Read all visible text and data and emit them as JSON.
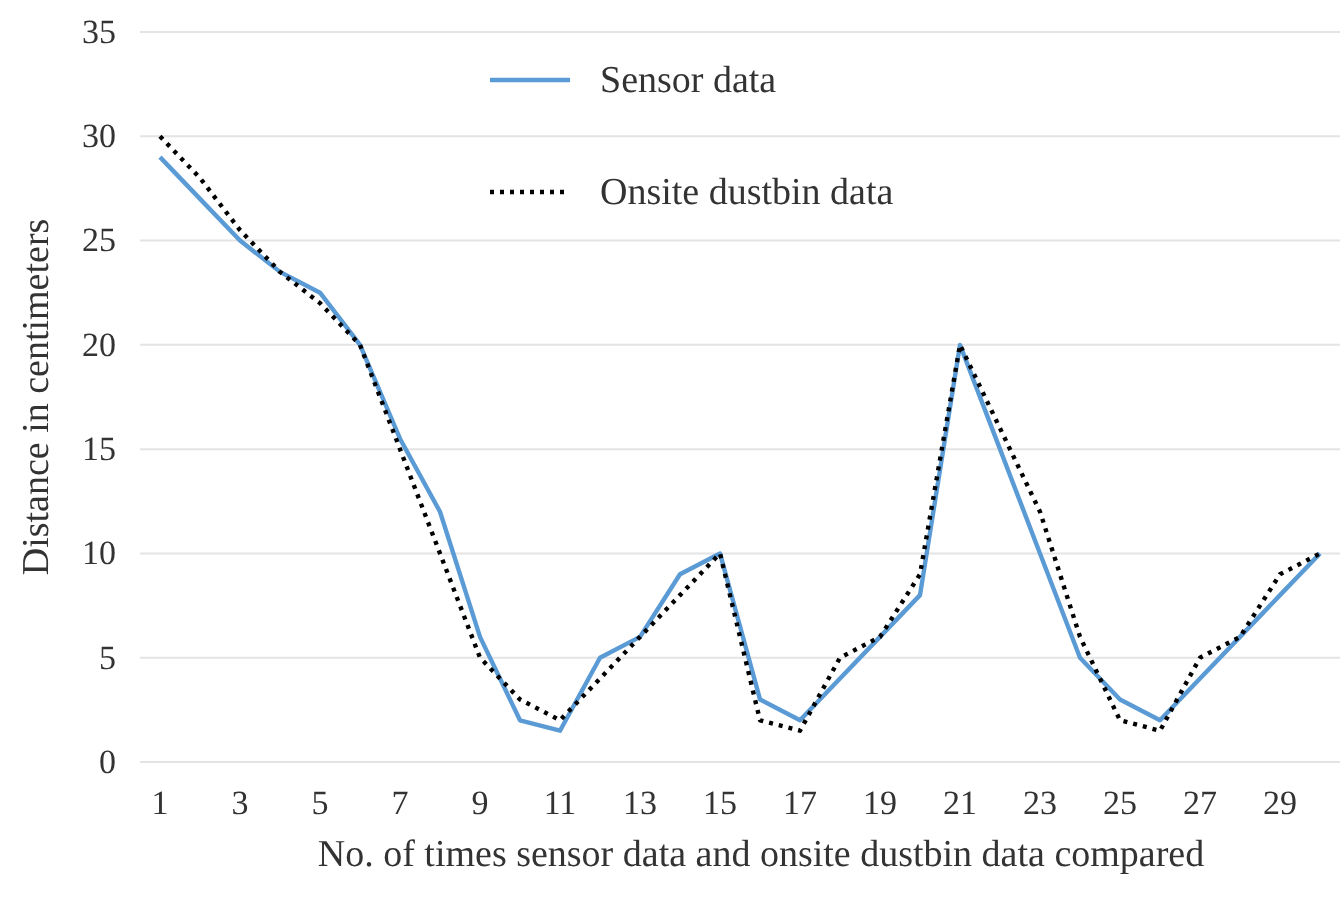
{
  "chart_data": {
    "type": "line",
    "xlabel": "No. of times sensor data and onsite dustbin data compared",
    "ylabel": "Distance in centimeters",
    "x": [
      1,
      2,
      3,
      4,
      5,
      6,
      7,
      8,
      9,
      10,
      11,
      12,
      13,
      14,
      15,
      16,
      17,
      18,
      19,
      20,
      21,
      22,
      23,
      24,
      25,
      26,
      27,
      28,
      29,
      30
    ],
    "xlim": [
      0.5,
      30.5
    ],
    "xticks": [
      1,
      3,
      5,
      7,
      9,
      11,
      13,
      15,
      17,
      19,
      21,
      23,
      25,
      27,
      29
    ],
    "series": [
      {
        "name": "Sensor data",
        "color": "#5b9bd5",
        "line_style": "solid",
        "values": [
          29,
          27,
          25,
          23.5,
          22.5,
          20,
          15.5,
          12,
          6,
          2,
          1.5,
          5,
          6,
          9,
          10,
          3,
          2,
          4,
          6,
          8,
          20,
          15,
          10,
          5,
          3,
          2,
          4,
          6,
          8,
          10
        ]
      },
      {
        "name": "Onsite dustbin data",
        "color": "#000000",
        "line_style": "dotted",
        "values": [
          30,
          28,
          25.5,
          23.5,
          22,
          20,
          15,
          10,
          5,
          3,
          2,
          4,
          6,
          8,
          10,
          2,
          1.5,
          5,
          6,
          9,
          20,
          16,
          12,
          6,
          2,
          1.5,
          5,
          6,
          9,
          10
        ]
      }
    ],
    "ylim": [
      0,
      35
    ],
    "yticks": [
      0,
      5,
      10,
      15,
      20,
      25,
      30,
      35
    ],
    "grid": "y",
    "legend": "top"
  }
}
